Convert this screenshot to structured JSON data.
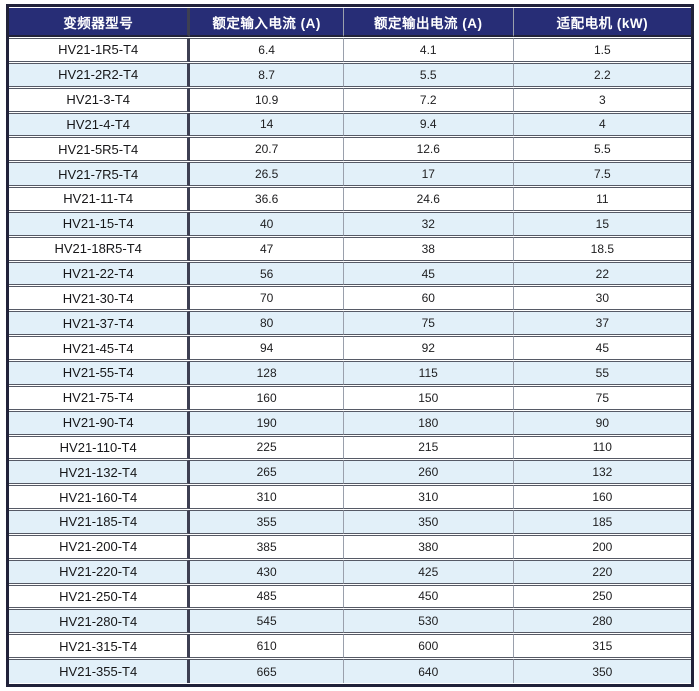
{
  "table": {
    "columns": [
      {
        "label": "变频器型号"
      },
      {
        "label": "额定输入电流 (A)"
      },
      {
        "label": "额定输出电流 (A)"
      },
      {
        "label": "适配电机 (kW)"
      }
    ],
    "rows": [
      {
        "model": "HV21-1R5-T4",
        "input_current": "6.4",
        "output_current": "4.1",
        "motor_kw": "1.5"
      },
      {
        "model": "HV21-2R2-T4",
        "input_current": "8.7",
        "output_current": "5.5",
        "motor_kw": "2.2"
      },
      {
        "model": "HV21-3-T4",
        "input_current": "10.9",
        "output_current": "7.2",
        "motor_kw": "3"
      },
      {
        "model": "HV21-4-T4",
        "input_current": "14",
        "output_current": "9.4",
        "motor_kw": "4"
      },
      {
        "model": "HV21-5R5-T4",
        "input_current": "20.7",
        "output_current": "12.6",
        "motor_kw": "5.5"
      },
      {
        "model": "HV21-7R5-T4",
        "input_current": "26.5",
        "output_current": "17",
        "motor_kw": "7.5"
      },
      {
        "model": "HV21-11-T4",
        "input_current": "36.6",
        "output_current": "24.6",
        "motor_kw": "11"
      },
      {
        "model": "HV21-15-T4",
        "input_current": "40",
        "output_current": "32",
        "motor_kw": "15"
      },
      {
        "model": "HV21-18R5-T4",
        "input_current": "47",
        "output_current": "38",
        "motor_kw": "18.5"
      },
      {
        "model": "HV21-22-T4",
        "input_current": "56",
        "output_current": "45",
        "motor_kw": "22"
      },
      {
        "model": "HV21-30-T4",
        "input_current": "70",
        "output_current": "60",
        "motor_kw": "30"
      },
      {
        "model": "HV21-37-T4",
        "input_current": "80",
        "output_current": "75",
        "motor_kw": "37"
      },
      {
        "model": "HV21-45-T4",
        "input_current": "94",
        "output_current": "92",
        "motor_kw": "45"
      },
      {
        "model": "HV21-55-T4",
        "input_current": "128",
        "output_current": "115",
        "motor_kw": "55"
      },
      {
        "model": "HV21-75-T4",
        "input_current": "160",
        "output_current": "150",
        "motor_kw": "75"
      },
      {
        "model": "HV21-90-T4",
        "input_current": "190",
        "output_current": "180",
        "motor_kw": "90"
      },
      {
        "model": "HV21-110-T4",
        "input_current": "225",
        "output_current": "215",
        "motor_kw": "110"
      },
      {
        "model": "HV21-132-T4",
        "input_current": "265",
        "output_current": "260",
        "motor_kw": "132"
      },
      {
        "model": "HV21-160-T4",
        "input_current": "310",
        "output_current": "310",
        "motor_kw": "160"
      },
      {
        "model": "HV21-185-T4",
        "input_current": "355",
        "output_current": "350",
        "motor_kw": "185"
      },
      {
        "model": "HV21-200-T4",
        "input_current": "385",
        "output_current": "380",
        "motor_kw": "200"
      },
      {
        "model": "HV21-220-T4",
        "input_current": "430",
        "output_current": "425",
        "motor_kw": "220"
      },
      {
        "model": "HV21-250-T4",
        "input_current": "485",
        "output_current": "450",
        "motor_kw": "250"
      },
      {
        "model": "HV21-280-T4",
        "input_current": "545",
        "output_current": "530",
        "motor_kw": "280"
      },
      {
        "model": "HV21-315-T4",
        "input_current": "610",
        "output_current": "600",
        "motor_kw": "315"
      },
      {
        "model": "HV21-355-T4",
        "input_current": "665",
        "output_current": "640",
        "motor_kw": "350"
      }
    ]
  },
  "colors": {
    "header_bg": "#272d76",
    "header_fg": "#ffffff",
    "alt_row_bg": "#e2f0f9",
    "outer_border": "#21223a",
    "heavy_divider": "#3d3f52",
    "row_line": "#565a66"
  }
}
